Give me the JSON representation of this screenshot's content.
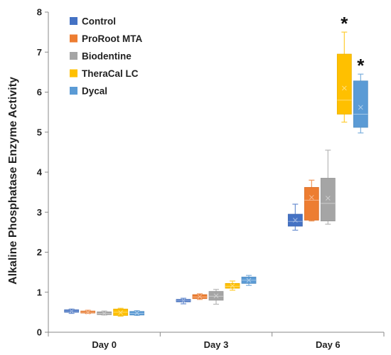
{
  "chart_data": {
    "type": "box",
    "title": "",
    "xlabel": "",
    "ylabel": "Alkaline Phosphatase Enzyme Activity",
    "ylim": [
      0,
      8
    ],
    "yticks": [
      "0",
      "1",
      "2",
      "3",
      "4",
      "5",
      "6",
      "7",
      "8"
    ],
    "grid": false,
    "legend_position": "top-left",
    "categories": [
      "Day 0",
      "Day 3",
      "Day 6"
    ],
    "series": [
      {
        "name": "Control",
        "color": "#4472C4",
        "boxes": [
          {
            "min": 0.47,
            "q1": 0.5,
            "median": 0.53,
            "q3": 0.56,
            "max": 0.58,
            "mean": 0.53
          },
          {
            "min": 0.71,
            "q1": 0.76,
            "median": 0.79,
            "q3": 0.82,
            "max": 0.85,
            "mean": 0.79
          },
          {
            "min": 2.55,
            "q1": 2.65,
            "median": 2.77,
            "q3": 2.95,
            "max": 3.2,
            "mean": 2.8
          }
        ]
      },
      {
        "name": "ProRoot MTA",
        "color": "#ED7D31",
        "boxes": [
          {
            "min": 0.47,
            "q1": 0.48,
            "median": 0.5,
            "q3": 0.53,
            "max": 0.55,
            "mean": 0.5
          },
          {
            "min": 0.82,
            "q1": 0.84,
            "median": 0.88,
            "q3": 0.94,
            "max": 0.96,
            "mean": 0.89
          },
          {
            "min": 2.78,
            "q1": 2.8,
            "median": 3.3,
            "q3": 3.62,
            "max": 3.8,
            "mean": 3.37
          }
        ]
      },
      {
        "name": "Biodentine",
        "color": "#A5A5A5",
        "boxes": [
          {
            "min": 0.43,
            "q1": 0.44,
            "median": 0.47,
            "q3": 0.51,
            "max": 0.53,
            "mean": 0.47
          },
          {
            "min": 0.7,
            "q1": 0.8,
            "median": 0.9,
            "q3": 1.02,
            "max": 1.07,
            "mean": 0.91
          },
          {
            "min": 2.7,
            "q1": 2.78,
            "median": 3.22,
            "q3": 3.85,
            "max": 4.55,
            "mean": 3.35
          }
        ]
      },
      {
        "name": "TheraCal LC",
        "color": "#FFC000",
        "boxes": [
          {
            "min": 0.4,
            "q1": 0.42,
            "median": 0.5,
            "q3": 0.58,
            "max": 0.6,
            "mean": 0.49
          },
          {
            "min": 1.05,
            "q1": 1.1,
            "median": 1.15,
            "q3": 1.22,
            "max": 1.28,
            "mean": 1.16
          },
          {
            "min": 5.25,
            "q1": 5.45,
            "median": 5.8,
            "q3": 6.95,
            "max": 7.5,
            "mean": 6.1
          }
        ]
      },
      {
        "name": "Dycal",
        "color": "#5B9BD5",
        "boxes": [
          {
            "min": 0.42,
            "q1": 0.43,
            "median": 0.47,
            "q3": 0.52,
            "max": 0.54,
            "mean": 0.48
          },
          {
            "min": 1.17,
            "q1": 1.22,
            "median": 1.3,
            "q3": 1.38,
            "max": 1.42,
            "mean": 1.3
          },
          {
            "min": 4.98,
            "q1": 5.12,
            "median": 5.45,
            "q3": 6.28,
            "max": 6.45,
            "mean": 5.62
          }
        ]
      }
    ],
    "annotations": [
      {
        "text": "*",
        "series": "TheraCal LC",
        "category": "Day 6"
      },
      {
        "text": "*",
        "series": "Dycal",
        "category": "Day 6"
      }
    ]
  }
}
